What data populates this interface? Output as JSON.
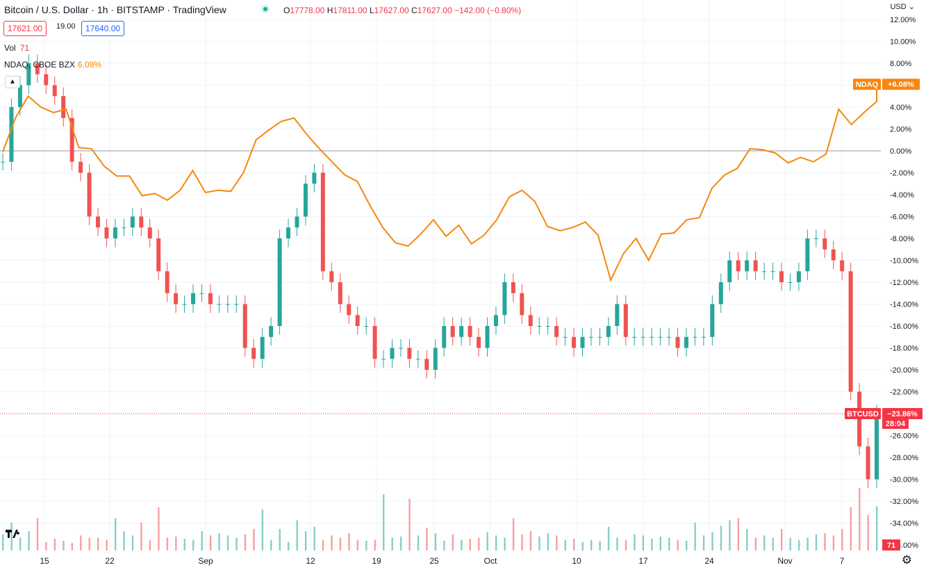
{
  "header": {
    "title": "Bitcoin / U.S. Dollar · 1h · BITSTAMP · TradingView",
    "ohlc": {
      "o_label": "O",
      "o": "17778.00",
      "h_label": "H",
      "h": "17811.00",
      "l_label": "L",
      "l": "17627.00",
      "c_label": "C",
      "c": "17627.00",
      "change": "−142.00 (−0.80%)"
    },
    "sell_price": "17621.00",
    "spread": "19.00",
    "buy_price": "17640.00"
  },
  "legends": {
    "volume_label": "Vol",
    "volume_value": "71",
    "compare_label": "NDAQ, CBOE BZX",
    "compare_value": "6.08%"
  },
  "axis": {
    "currency": "USD"
  },
  "badges": {
    "ndaq_name": "NDAQ",
    "ndaq_value": "+6.08%",
    "btc_name": "BTCUSD",
    "btc_value": "−23.86%",
    "btc_timer": "28:04",
    "volume_value": "71"
  },
  "colors": {
    "up": "#26a69a",
    "down": "#ef5350",
    "compare_line": "#f7860f",
    "grid": "#f0f3fa",
    "text": "#131722",
    "badge_red": "#f23645"
  },
  "icons": {
    "logo": "tradingview-logo-icon",
    "settings": "gear-icon",
    "collapse": "chevron-up-icon",
    "currency_menu": "chevron-down-icon"
  },
  "chart_data": {
    "type": "line",
    "y_axis": {
      "unit": "%",
      "range": [
        -36,
        13
      ],
      "ticks": [
        "12.00%",
        "10.00%",
        "8.00%",
        "6.00%",
        "4.00%",
        "2.00%",
        "0.00%",
        "-2.00%",
        "-4.00%",
        "-6.00%",
        "-8.00%",
        "-10.00%",
        "-12.00%",
        "-14.00%",
        "-16.00%",
        "-18.00%",
        "-20.00%",
        "-22.00%",
        "-26.00%",
        "-28.00%",
        "-30.00%",
        "-32.00%",
        "-34.00%",
        "-36.00%"
      ]
    },
    "x_ticks": [
      "15",
      "22",
      "Sep",
      "12",
      "19",
      "25",
      "Oct",
      "10",
      "17",
      "24",
      "Nov",
      "7"
    ],
    "grid": true,
    "series": [
      {
        "name": "BTCUSD",
        "style": "candles",
        "points": [
          [
            0,
            -1
          ],
          [
            1,
            4
          ],
          [
            2,
            6
          ],
          [
            3,
            8
          ],
          [
            4,
            7
          ],
          [
            5,
            6
          ],
          [
            6,
            5
          ],
          [
            7,
            3
          ],
          [
            8,
            -1
          ],
          [
            9,
            -2
          ],
          [
            10,
            -6
          ],
          [
            11,
            -7
          ],
          [
            12,
            -8
          ],
          [
            13,
            -7
          ],
          [
            14,
            -7
          ],
          [
            15,
            -6
          ],
          [
            16,
            -7
          ],
          [
            17,
            -8
          ],
          [
            18,
            -11
          ],
          [
            19,
            -13
          ],
          [
            20,
            -14
          ],
          [
            21,
            -14
          ],
          [
            22,
            -13
          ],
          [
            23,
            -13
          ],
          [
            24,
            -14
          ],
          [
            25,
            -14
          ],
          [
            26,
            -14
          ],
          [
            27,
            -14
          ],
          [
            28,
            -18
          ],
          [
            29,
            -19
          ],
          [
            30,
            -17
          ],
          [
            31,
            -16
          ],
          [
            32,
            -8
          ],
          [
            33,
            -7
          ],
          [
            34,
            -6
          ],
          [
            35,
            -3
          ],
          [
            36,
            -2
          ],
          [
            37,
            -11
          ],
          [
            38,
            -12
          ],
          [
            39,
            -14
          ],
          [
            40,
            -15
          ],
          [
            41,
            -16
          ],
          [
            42,
            -16
          ],
          [
            43,
            -19
          ],
          [
            44,
            -19
          ],
          [
            45,
            -18
          ],
          [
            46,
            -18
          ],
          [
            47,
            -19
          ],
          [
            48,
            -19
          ],
          [
            49,
            -20
          ],
          [
            50,
            -18
          ],
          [
            51,
            -16
          ],
          [
            52,
            -17
          ],
          [
            53,
            -16
          ],
          [
            54,
            -17
          ],
          [
            55,
            -18
          ],
          [
            56,
            -16
          ],
          [
            57,
            -15
          ],
          [
            58,
            -12
          ],
          [
            59,
            -13
          ],
          [
            60,
            -15
          ],
          [
            61,
            -16
          ],
          [
            62,
            -16
          ],
          [
            63,
            -16
          ],
          [
            64,
            -17
          ],
          [
            65,
            -17
          ],
          [
            66,
            -18
          ],
          [
            67,
            -17
          ],
          [
            68,
            -17
          ],
          [
            69,
            -17
          ],
          [
            70,
            -16
          ],
          [
            71,
            -14
          ],
          [
            72,
            -17
          ],
          [
            73,
            -17
          ],
          [
            74,
            -17
          ],
          [
            75,
            -17
          ],
          [
            76,
            -17
          ],
          [
            77,
            -17
          ],
          [
            78,
            -18
          ],
          [
            79,
            -17
          ],
          [
            80,
            -17
          ],
          [
            81,
            -17
          ],
          [
            82,
            -14
          ],
          [
            83,
            -12
          ],
          [
            84,
            -10
          ],
          [
            85,
            -11
          ],
          [
            86,
            -10
          ],
          [
            87,
            -11
          ],
          [
            88,
            -11
          ],
          [
            89,
            -11
          ],
          [
            90,
            -12
          ],
          [
            91,
            -12
          ],
          [
            92,
            -11
          ],
          [
            93,
            -8
          ],
          [
            94,
            -8
          ],
          [
            95,
            -9
          ],
          [
            96,
            -10
          ],
          [
            97,
            -11
          ],
          [
            98,
            -22
          ],
          [
            99,
            -27
          ],
          [
            100,
            -30
          ],
          [
            101,
            -24
          ]
        ],
        "volume": [
          15,
          26,
          12,
          18,
          30,
          8,
          11,
          9,
          7,
          14,
          12,
          12,
          10,
          30,
          18,
          14,
          26,
          10,
          40,
          12,
          13,
          11,
          10,
          18,
          14,
          16,
          14,
          12,
          15,
          20,
          38,
          10,
          20,
          8,
          28,
          18,
          22,
          10,
          14,
          12,
          16,
          10,
          9,
          10,
          52,
          12,
          13,
          48,
          14,
          21,
          16,
          9,
          15,
          10,
          11,
          12,
          17,
          14,
          12,
          30,
          15,
          18,
          13,
          16,
          14,
          10,
          11,
          8,
          10,
          9,
          22,
          12,
          10,
          15,
          14,
          11,
          13,
          12,
          10,
          9,
          26,
          14,
          17,
          23,
          28,
          30,
          20,
          12,
          14,
          12,
          20,
          12,
          10,
          12,
          15,
          16,
          14,
          20,
          40,
          58,
          33,
          41
        ]
      },
      {
        "name": "NDAQ",
        "style": "line",
        "points": [
          [
            0,
            -0.1
          ],
          [
            1,
            3
          ],
          [
            2,
            5
          ],
          [
            3,
            4
          ],
          [
            4,
            3.5
          ],
          [
            5,
            3.8
          ],
          [
            6,
            0.3
          ],
          [
            7,
            0.2
          ],
          [
            8,
            -1.4
          ],
          [
            9,
            -2.3
          ],
          [
            10,
            -2.3
          ],
          [
            11,
            -4.1
          ],
          [
            12,
            -3.9
          ],
          [
            13,
            -4.5
          ],
          [
            14,
            -3.6
          ],
          [
            15,
            -1.8
          ],
          [
            16,
            -3.8
          ],
          [
            17,
            -3.6
          ],
          [
            18,
            -3.7
          ],
          [
            19,
            -2.0
          ],
          [
            20,
            1.0
          ],
          [
            21,
            1.9
          ],
          [
            22,
            2.7
          ],
          [
            23,
            3.0
          ],
          [
            24,
            1.5
          ],
          [
            25,
            0.2
          ],
          [
            26,
            -1.0
          ],
          [
            27,
            -2.2
          ],
          [
            28,
            -2.8
          ],
          [
            29,
            -5.0
          ],
          [
            30,
            -7.0
          ],
          [
            31,
            -8.4
          ],
          [
            32,
            -8.7
          ],
          [
            33,
            -7.6
          ],
          [
            34,
            -6.3
          ],
          [
            35,
            -7.8
          ],
          [
            36,
            -6.8
          ],
          [
            37,
            -8.5
          ],
          [
            38,
            -7.7
          ],
          [
            39,
            -6.3
          ],
          [
            40,
            -4.2
          ],
          [
            41,
            -3.6
          ],
          [
            42,
            -4.6
          ],
          [
            43,
            -6.9
          ],
          [
            44,
            -7.3
          ],
          [
            45,
            -7.0
          ],
          [
            46,
            -6.5
          ],
          [
            47,
            -7.7
          ],
          [
            48,
            -11.8
          ],
          [
            49,
            -9.4
          ],
          [
            50,
            -8.0
          ],
          [
            51,
            -10.0
          ],
          [
            52,
            -7.6
          ],
          [
            53,
            -7.5
          ],
          [
            54,
            -6.3
          ],
          [
            55,
            -6.1
          ],
          [
            56,
            -3.4
          ],
          [
            57,
            -2.2
          ],
          [
            58,
            -1.6
          ],
          [
            59,
            0.2
          ],
          [
            60,
            0.1
          ],
          [
            61,
            -0.2
          ],
          [
            62,
            -1.1
          ],
          [
            63,
            -0.6
          ],
          [
            64,
            -1.0
          ],
          [
            65,
            -0.3
          ],
          [
            66,
            3.8
          ],
          [
            67,
            2.4
          ],
          [
            68,
            3.5
          ],
          [
            69,
            4.5
          ]
        ],
        "end_value": 6.08
      }
    ]
  }
}
